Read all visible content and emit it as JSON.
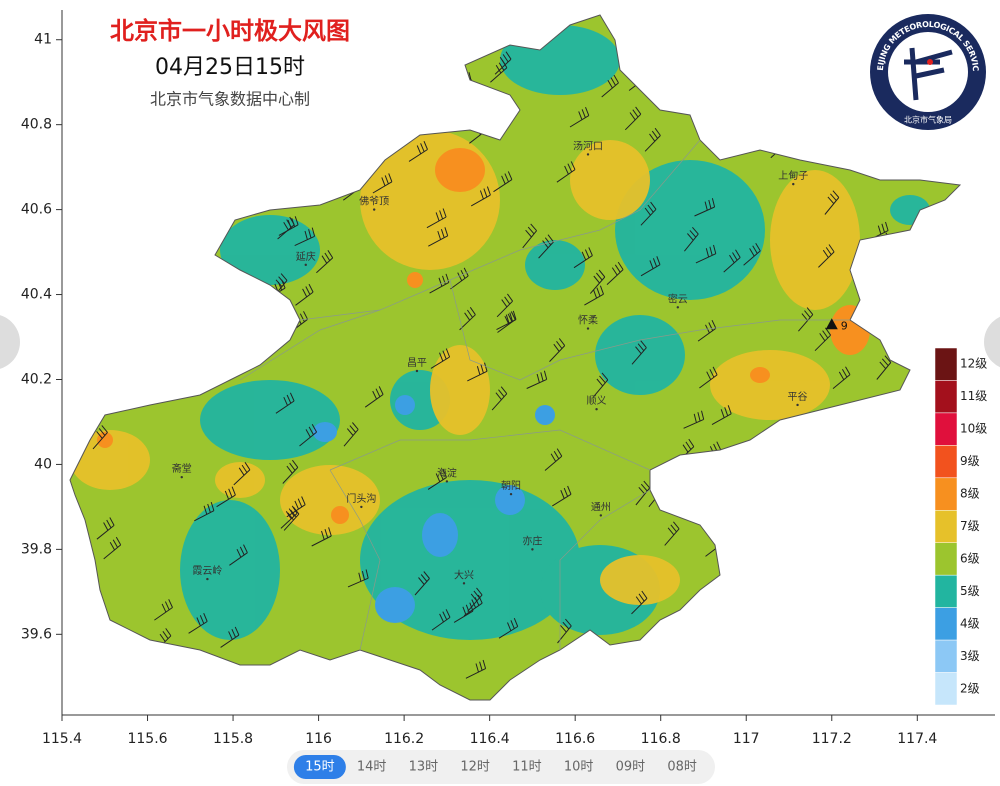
{
  "header": {
    "title": "北京市一小时极大风图",
    "subtitle": "04月25日15时",
    "credit": "北京市气象数据中心制"
  },
  "logo": {
    "ring_text": "BEIJING METEOROLOGICAL SERVICE",
    "name": "北京市气象局"
  },
  "axes": {
    "xlim": [
      115.4,
      117.57
    ],
    "ylim": [
      39.41,
      41.07
    ],
    "xticks": [
      115.4,
      115.6,
      115.8,
      116,
      116.2,
      116.4,
      116.6,
      116.8,
      117,
      117.2,
      117.4
    ],
    "yticks": [
      39.6,
      39.8,
      40,
      40.2,
      40.4,
      40.6,
      40.8,
      41
    ]
  },
  "legend": [
    {
      "label": "12级",
      "color": "#6b1414"
    },
    {
      "label": "11级",
      "color": "#a3101c"
    },
    {
      "label": "10级",
      "color": "#e0103c"
    },
    {
      "label": "9级",
      "color": "#f2521e"
    },
    {
      "label": "8级",
      "color": "#f7901f"
    },
    {
      "label": "7级",
      "color": "#e6c12a"
    },
    {
      "label": "6级",
      "color": "#9cc52e"
    },
    {
      "label": "5级",
      "color": "#22b5a0"
    },
    {
      "label": "4级",
      "color": "#3c9fe3"
    },
    {
      "label": "3级",
      "color": "#8cc8f5"
    },
    {
      "label": "2级",
      "color": "#c6e6fb"
    }
  ],
  "stations": [
    {
      "label": "9",
      "lon": 117.2,
      "lat": 40.33
    }
  ],
  "places": [
    {
      "name": "汤河口",
      "lon": 116.63,
      "lat": 40.73
    },
    {
      "name": "佛爷顶",
      "lon": 116.13,
      "lat": 40.6
    },
    {
      "name": "延庆",
      "lon": 115.97,
      "lat": 40.47
    },
    {
      "name": "上甸子",
      "lon": 117.11,
      "lat": 40.66
    },
    {
      "name": "怀柔",
      "lon": 116.63,
      "lat": 40.32
    },
    {
      "name": "密云",
      "lon": 116.84,
      "lat": 40.37
    },
    {
      "name": "昌平",
      "lon": 116.23,
      "lat": 40.22
    },
    {
      "name": "顺义",
      "lon": 116.65,
      "lat": 40.13
    },
    {
      "name": "平谷",
      "lon": 117.12,
      "lat": 40.14
    },
    {
      "name": "斋堂",
      "lon": 115.68,
      "lat": 39.97
    },
    {
      "name": "门头沟",
      "lon": 116.1,
      "lat": 39.9
    },
    {
      "name": "海淀",
      "lon": 116.3,
      "lat": 39.96
    },
    {
      "name": "朝阳",
      "lon": 116.45,
      "lat": 39.93
    },
    {
      "name": "通州",
      "lon": 116.66,
      "lat": 39.88
    },
    {
      "name": "霞云岭",
      "lon": 115.74,
      "lat": 39.73
    },
    {
      "name": "大兴",
      "lon": 116.34,
      "lat": 39.72
    },
    {
      "name": "亦庄",
      "lon": 116.5,
      "lat": 39.8
    }
  ],
  "tabs": [
    {
      "label": "15时",
      "active": true
    },
    {
      "label": "14时"
    },
    {
      "label": "13时"
    },
    {
      "label": "12时"
    },
    {
      "label": "11时"
    },
    {
      "label": "10时"
    },
    {
      "label": "09时"
    },
    {
      "label": "08时"
    }
  ]
}
